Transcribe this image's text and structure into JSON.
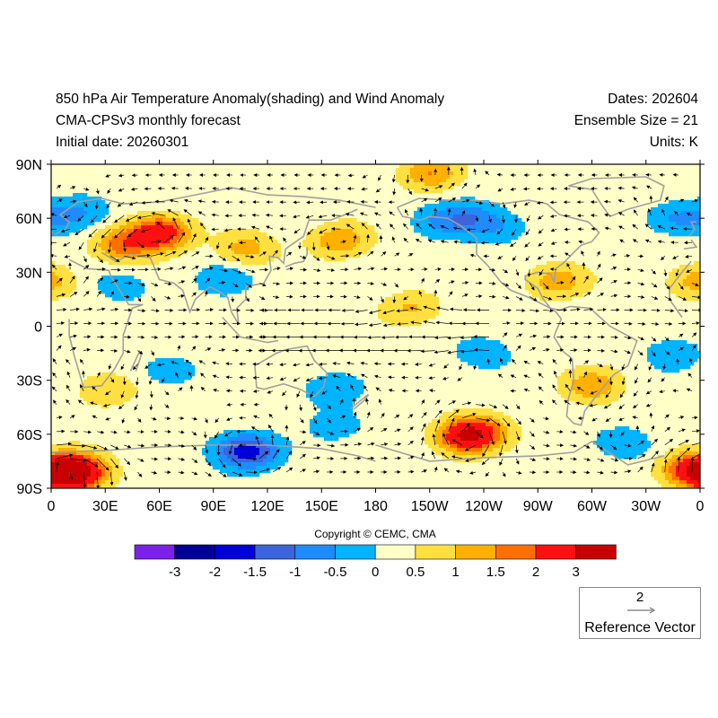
{
  "header": {
    "title": "850 hPa Air Temperature Anomaly(shading) and Wind Anomaly",
    "model": "CMA-CPSv3 monthly forecast",
    "initial_date": "Initial date: 20260301",
    "dates": "Dates: 202604",
    "ensemble": "Ensemble Size = 21",
    "units": "Units: K"
  },
  "axes": {
    "y_ticks": [
      "90N",
      "60N",
      "30N",
      "0",
      "30S",
      "60S",
      "90S"
    ],
    "x_ticks": [
      "0",
      "30E",
      "60E",
      "90E",
      "120E",
      "150E",
      "180",
      "150W",
      "120W",
      "90W",
      "60W",
      "30W",
      "0"
    ]
  },
  "colorbar": {
    "labels": [
      "-3",
      "-2",
      "-1.5",
      "-1",
      "-0.5",
      "0",
      "0.5",
      "1",
      "1.5",
      "2",
      "3"
    ],
    "colors": [
      "#7c22e8",
      "#000096",
      "#0000d8",
      "#3c64dc",
      "#1e8cff",
      "#00b4ff",
      "#ffffc8",
      "#ffe040",
      "#ffb000",
      "#ff7000",
      "#ff1010",
      "#c80000"
    ]
  },
  "copyright": "Copyright © CEMC, CMA",
  "reference_vector": {
    "magnitude": "2",
    "label": "Reference Vector"
  },
  "colors": {
    "land_outline": "#a0a0a0",
    "vector": "#000000",
    "background_anomaly": "#ffffc8"
  },
  "chart_data": {
    "type": "heatmap",
    "variable": "850 hPa air temperature anomaly (K) with wind anomaly vectors",
    "lon_range": [
      0,
      360
    ],
    "lat_range": [
      -90,
      90
    ],
    "features": [
      {
        "lon": 60,
        "lat": 52,
        "anomaly": 2.5
      },
      {
        "lon": 40,
        "lat": 45,
        "anomaly": 1.5
      },
      {
        "lon": 20,
        "lat": 65,
        "anomaly": -0.5
      },
      {
        "lon": 8,
        "lat": 60,
        "anomaly": -0.7
      },
      {
        "lon": 215,
        "lat": 58,
        "anomaly": -0.6
      },
      {
        "lon": 232,
        "lat": 60,
        "anomaly": -1.0
      },
      {
        "lon": 250,
        "lat": 55,
        "anomaly": -0.6
      },
      {
        "lon": 345,
        "lat": 60,
        "anomaly": -0.8
      },
      {
        "lon": 160,
        "lat": 48,
        "anomaly": 1.2
      },
      {
        "lon": 108,
        "lat": 43,
        "anomaly": 1.0
      },
      {
        "lon": 210,
        "lat": 85,
        "anomaly": 1.2
      },
      {
        "lon": 95,
        "lat": 26,
        "anomaly": -0.6
      },
      {
        "lon": 40,
        "lat": 22,
        "anomaly": -0.5
      },
      {
        "lon": 200,
        "lat": 10,
        "anomaly": 0.8
      },
      {
        "lon": 280,
        "lat": 25,
        "anomaly": 1.1
      },
      {
        "lon": 358,
        "lat": 25,
        "anomaly": 1.0
      },
      {
        "lon": 155,
        "lat": -35,
        "anomaly": -0.7
      },
      {
        "lon": 160,
        "lat": -55,
        "anomaly": -0.5
      },
      {
        "lon": 65,
        "lat": -25,
        "anomaly": -0.6
      },
      {
        "lon": 30,
        "lat": -35,
        "anomaly": 0.8
      },
      {
        "lon": 240,
        "lat": -15,
        "anomaly": -0.6
      },
      {
        "lon": 345,
        "lat": -15,
        "anomaly": -0.6
      },
      {
        "lon": 300,
        "lat": -33,
        "anomaly": 1.1
      },
      {
        "lon": 235,
        "lat": -58,
        "anomaly": 1.6
      },
      {
        "lon": 230,
        "lat": -62,
        "anomaly": 2.0
      },
      {
        "lon": 105,
        "lat": -68,
        "anomaly": -0.8
      },
      {
        "lon": 110,
        "lat": -70,
        "anomaly": -1.5
      },
      {
        "lon": 15,
        "lat": -80,
        "anomaly": 1.8
      },
      {
        "lon": 10,
        "lat": -82,
        "anomaly": 2.5
      },
      {
        "lon": 355,
        "lat": -80,
        "anomaly": 2.0
      },
      {
        "lon": 320,
        "lat": -65,
        "anomaly": -0.6
      }
    ]
  }
}
